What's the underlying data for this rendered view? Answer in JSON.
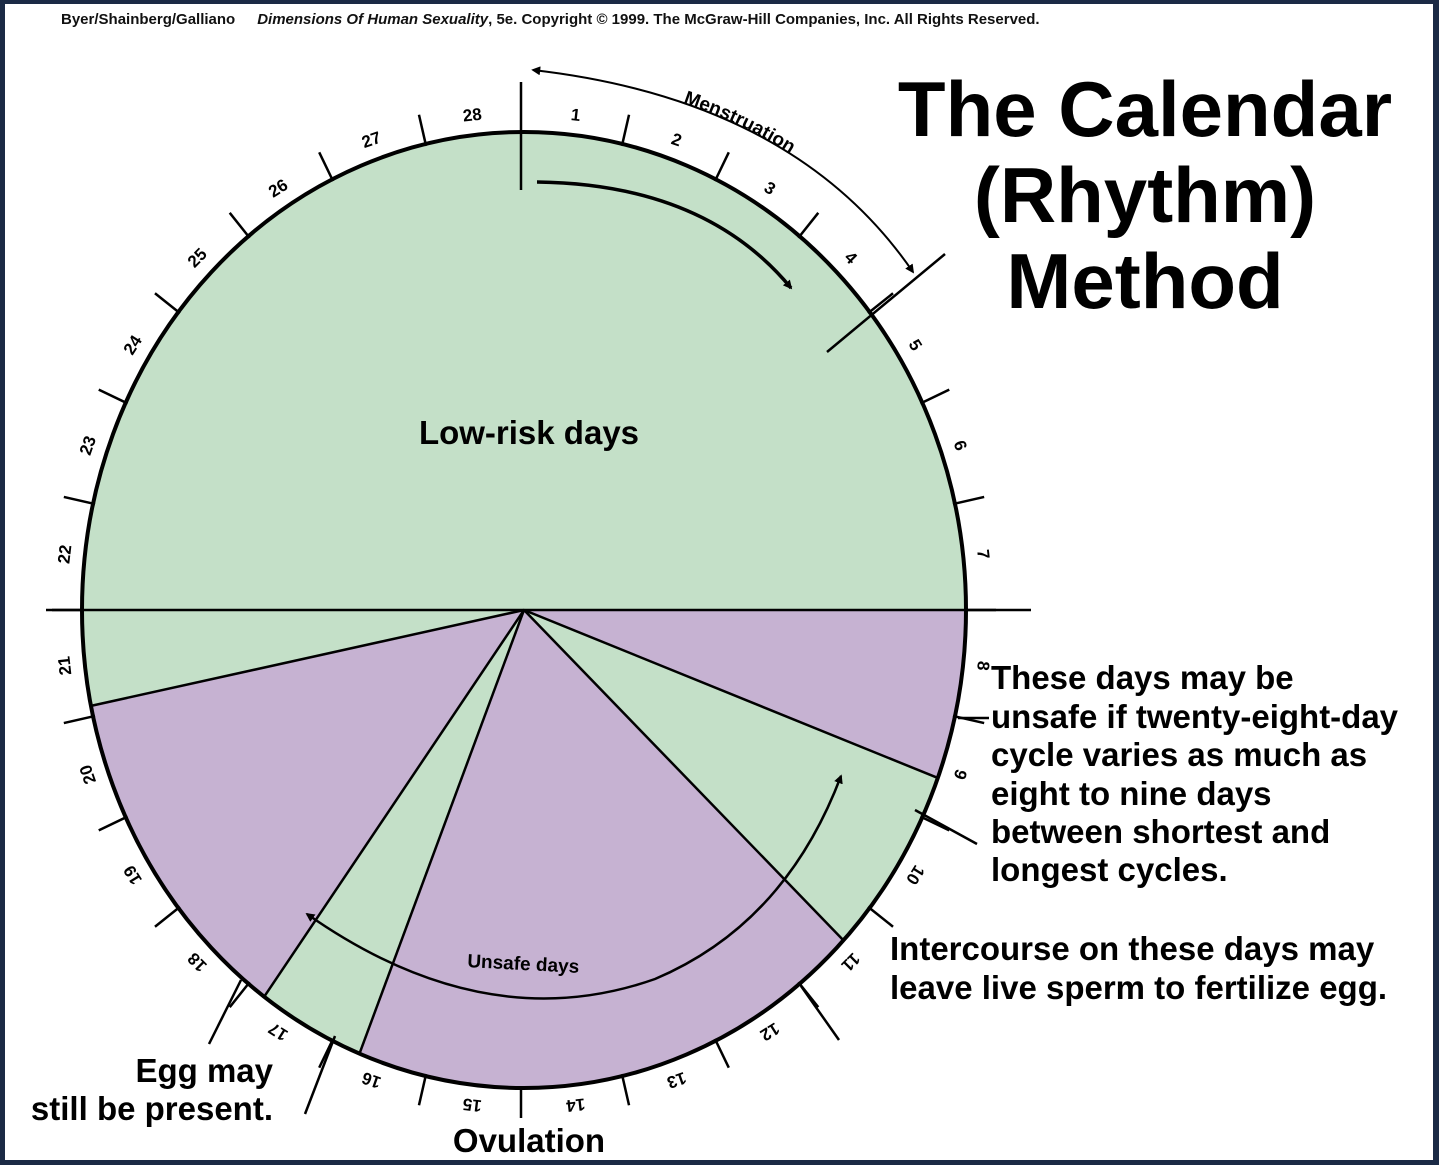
{
  "credit": {
    "authors": "Byer/Shainberg/Galliano",
    "book": "Dimensions Of Human Sexuality",
    "rest": ", 5e. Copyright © 1999. The McGraw-Hill Companies, Inc. All Rights Reserved."
  },
  "title": [
    "The Calendar",
    "(Rhythm)",
    "Method"
  ],
  "days": [
    "1",
    "2",
    "3",
    "4",
    "5",
    "6",
    "7",
    "8",
    "9",
    "10",
    "11",
    "12",
    "13",
    "14",
    "15",
    "16",
    "17",
    "18",
    "19",
    "20",
    "21",
    "22",
    "23",
    "24",
    "25",
    "26",
    "27",
    "28"
  ],
  "arc_labels": {
    "menstruation": "Menstruation",
    "unsafe": "Unsafe days"
  },
  "regions": {
    "low_risk": "Low-risk days"
  },
  "notes": {
    "variable_cycle": [
      "These days may be",
      "unsafe if twenty-eight-day",
      "cycle varies as much as",
      "eight to nine days",
      "between shortest and",
      "longest cycles."
    ],
    "sperm": [
      "Intercourse on these days may",
      "leave live sperm to fertilize egg."
    ],
    "egg": [
      "Egg may",
      "still be present."
    ],
    "ovulation": "Ovulation"
  },
  "colors": {
    "low_risk_fill": "#c4e0c8",
    "unsafe_fill": "#c6b2d2",
    "stroke": "#000000"
  }
}
